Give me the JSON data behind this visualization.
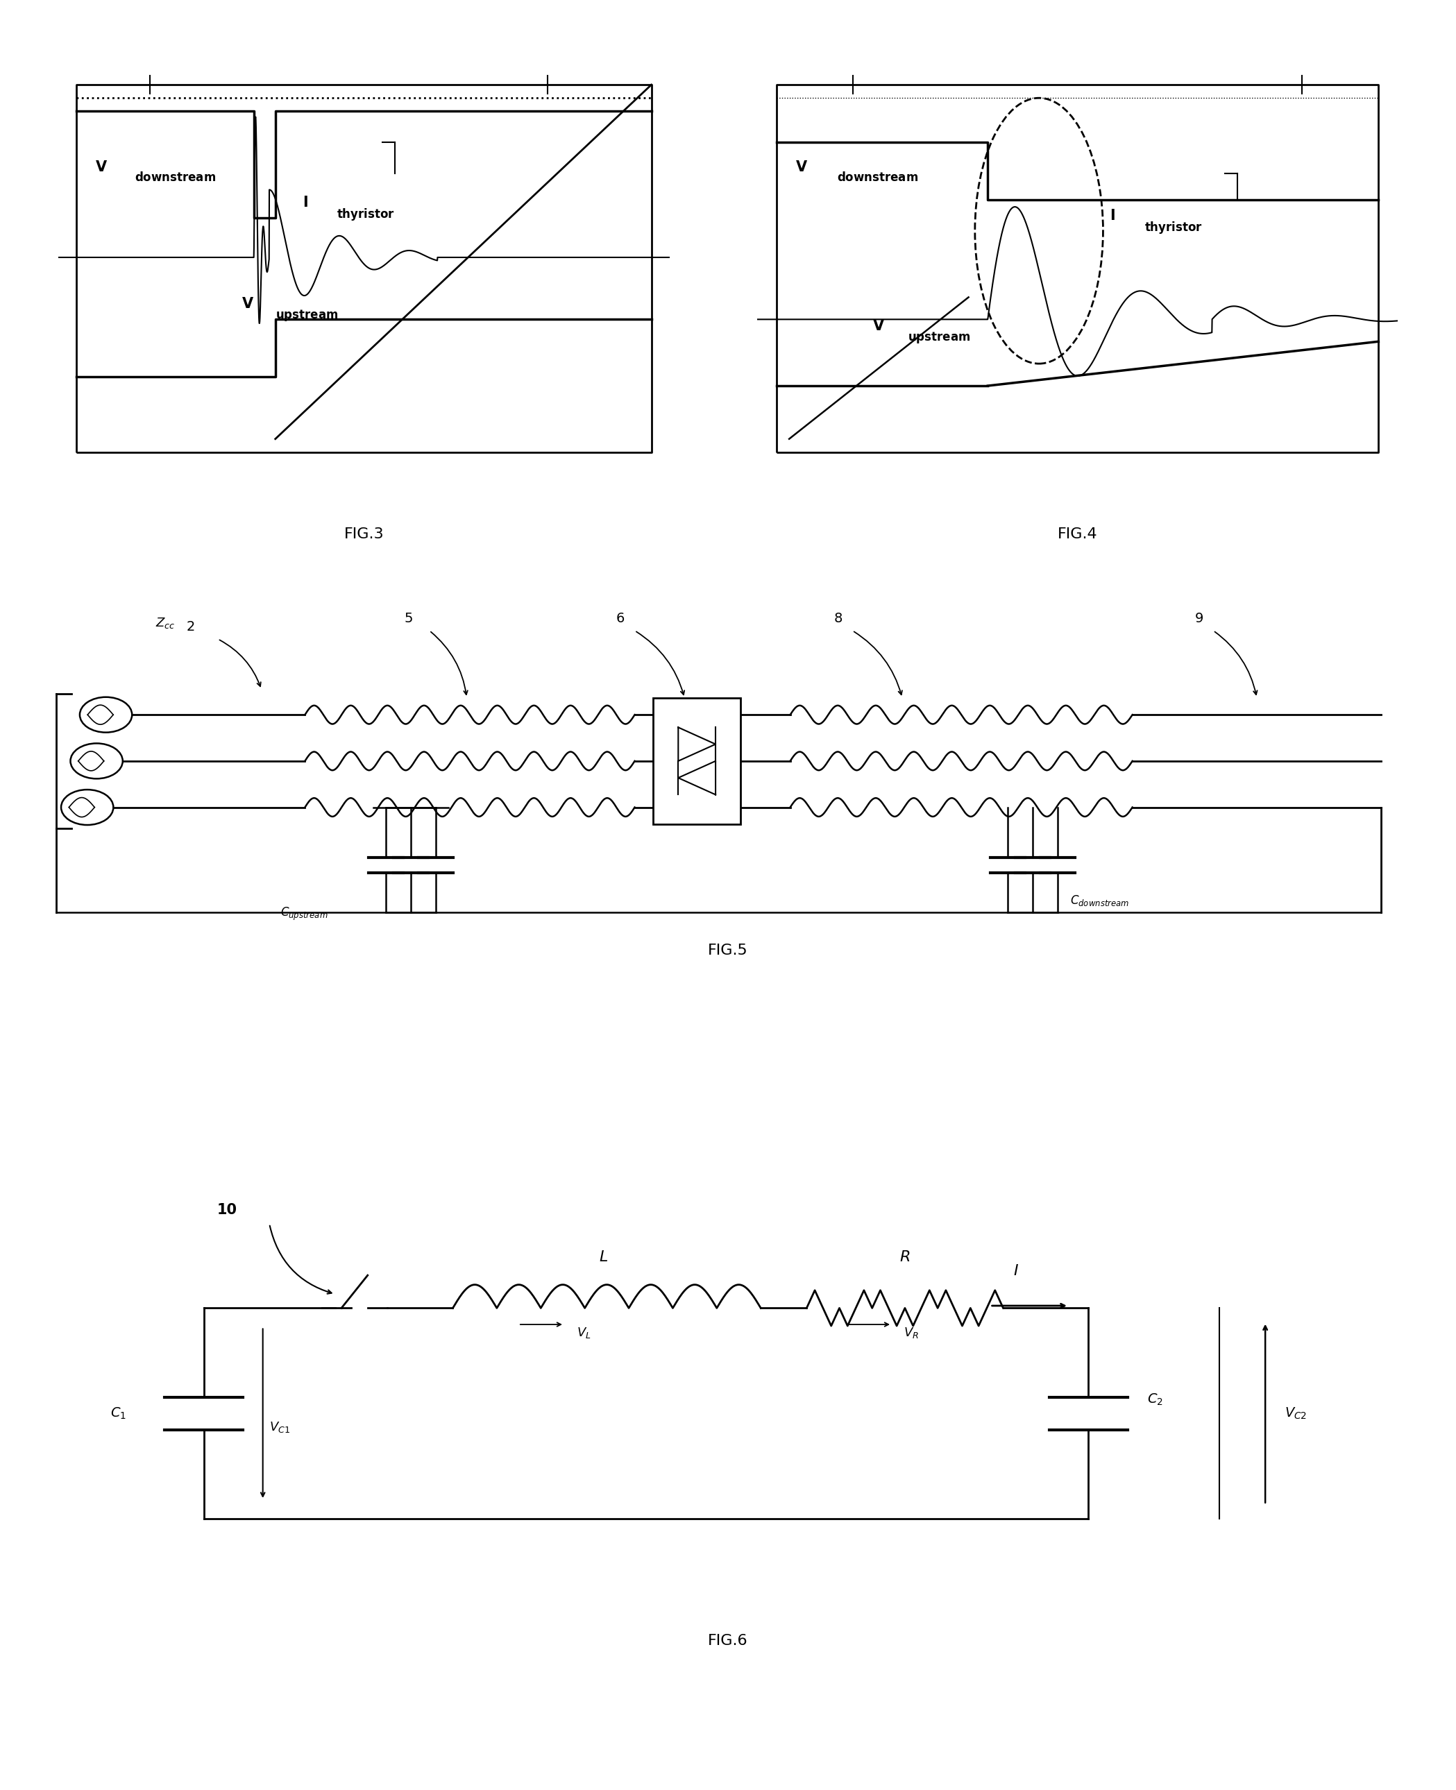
{
  "bg_color": "#ffffff",
  "fig3_title": "FIG.3",
  "fig4_title": "FIG.4",
  "fig5_title": "FIG.5",
  "fig6_title": "FIG.6"
}
